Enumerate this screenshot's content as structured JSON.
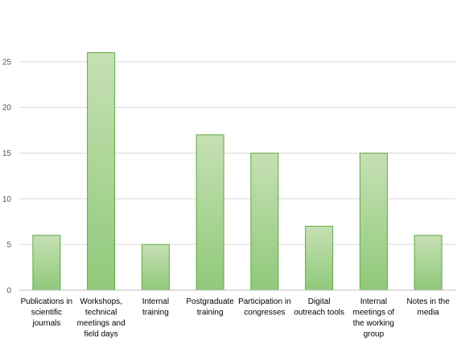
{
  "chart_data": {
    "type": "bar",
    "title": "",
    "xlabel": "",
    "ylabel": "",
    "categories": [
      "Publications in scientific journals",
      "Workshops, technical meetings and field days",
      "Internal training",
      "Postgraduate training",
      "Participation in congresses",
      "Digital outreach tools",
      "Internal meetings of the working group",
      "Notes in the media"
    ],
    "category_lines": [
      [
        "Publications in",
        "scientific",
        "journals"
      ],
      [
        "Workshops,",
        "technical",
        "meetings and",
        "field days"
      ],
      [
        "Internal",
        "training"
      ],
      [
        "Postgraduate",
        "training"
      ],
      [
        "Participation in",
        "congresses"
      ],
      [
        "Digital",
        "outreach tools"
      ],
      [
        "Internal",
        "meetings of",
        "the working",
        "group"
      ],
      [
        "Notes in the",
        "media"
      ]
    ],
    "values": [
      6,
      26,
      5,
      17,
      15,
      7,
      15,
      6
    ],
    "ylim": [
      0,
      30
    ],
    "yticks": [
      0,
      5,
      10,
      15,
      20,
      25
    ],
    "grid": true,
    "legend": "none",
    "colors": {
      "bar_fill_top": "#c6e0b4",
      "bar_fill_bottom": "#90c97a",
      "bar_stroke": "#5fa845",
      "grid": "#d9d9d9",
      "axis": "#bfbfbf"
    }
  }
}
